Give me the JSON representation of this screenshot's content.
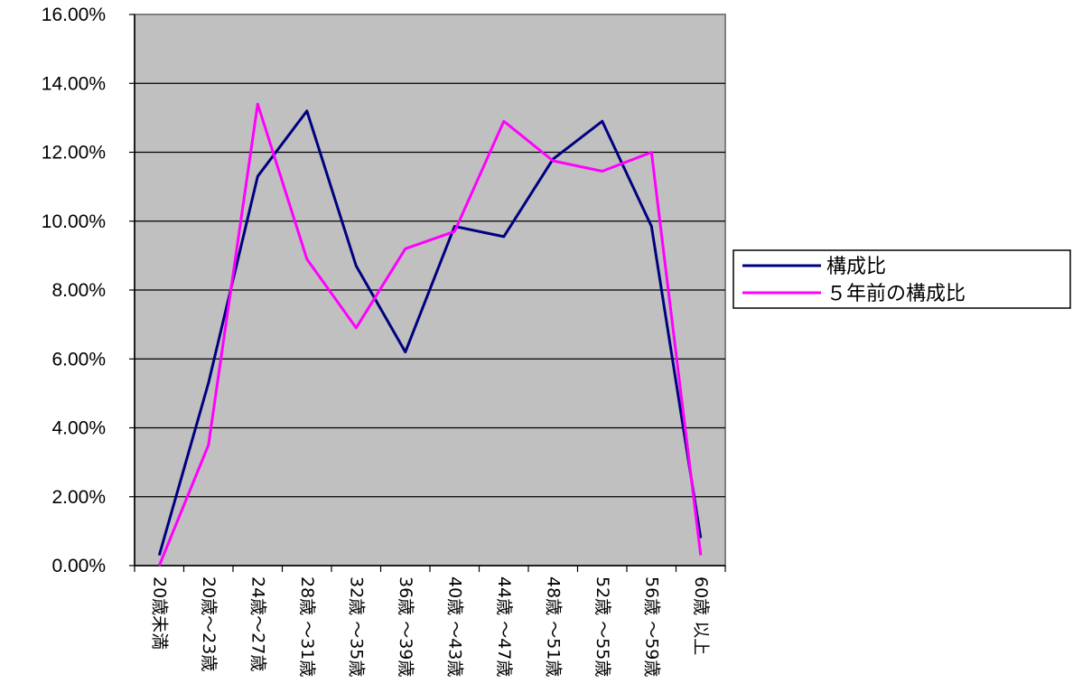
{
  "chart_data": {
    "type": "line",
    "categories": [
      "20歳未満",
      "20歳～23歳",
      "24歳～27歳",
      "28歳 ～31歳",
      "32歳 ～35歳",
      "36歳 ～39歳",
      "40歳 ～43歳",
      "44歳 ～47歳",
      "48歳 ～51歳",
      "52歳 ～55歳",
      "56歳 ～59歳",
      "60歳 以上"
    ],
    "series": [
      {
        "name": "構成比",
        "color": "#000080",
        "values": [
          0.3,
          5.3,
          11.3,
          13.2,
          8.7,
          6.2,
          9.85,
          9.55,
          11.8,
          12.9,
          9.85,
          0.8
        ]
      },
      {
        "name": "５年前の構成比",
        "color": "#ff00ff",
        "values": [
          0.0,
          3.5,
          13.4,
          8.9,
          6.9,
          9.2,
          9.7,
          12.9,
          11.75,
          11.45,
          12.0,
          0.3
        ]
      }
    ],
    "yticks": [
      "0.00%",
      "2.00%",
      "4.00%",
      "6.00%",
      "8.00%",
      "10.00%",
      "12.00%",
      "14.00%",
      "16.00%"
    ],
    "ylim": [
      0,
      16
    ],
    "ystep": 2,
    "grid": true,
    "legend": "right",
    "plot_background": "#c0c0c0",
    "title": "",
    "xlabel": "",
    "ylabel": ""
  }
}
